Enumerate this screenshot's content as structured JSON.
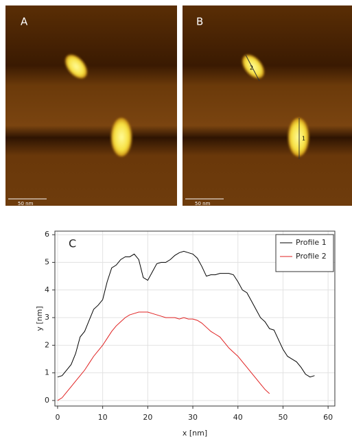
{
  "panels": [
    {
      "label": "A",
      "scale_bar": "50 nm"
    },
    {
      "label": "B",
      "scale_bar": "50 nm",
      "profile_labels": [
        "2",
        "1"
      ]
    }
  ],
  "chart_data": {
    "type": "line",
    "panel_label": "C",
    "x_label": "x [nm]",
    "y_label": "y [nm]",
    "xlim": [
      -0.6,
      61.5
    ],
    "ylim": [
      -0.2,
      6.13
    ],
    "xticks": [
      0,
      10,
      20,
      30,
      40,
      50,
      60
    ],
    "yticks": [
      0,
      1,
      2,
      3,
      4,
      5,
      6
    ],
    "grid": true,
    "legend": "upper right",
    "series": [
      {
        "name": "Profile 1",
        "color": "#000000",
        "x": [
          0,
          1,
          2,
          3,
          4,
          5,
          6,
          7,
          8,
          9,
          10,
          11,
          12,
          13,
          14,
          15,
          16,
          17,
          18,
          19,
          20,
          21,
          22,
          23,
          24,
          25,
          26,
          27,
          28,
          29,
          30,
          31,
          32,
          33,
          34,
          35,
          36,
          37,
          38,
          39,
          40,
          41,
          42,
          43,
          44,
          45,
          46,
          47,
          48,
          49,
          50,
          51,
          52,
          53,
          54,
          55,
          56,
          57
        ],
        "values": [
          0.85,
          0.9,
          1.1,
          1.3,
          1.7,
          2.3,
          2.5,
          2.9,
          3.3,
          3.45,
          3.65,
          4.3,
          4.8,
          4.9,
          5.1,
          5.2,
          5.2,
          5.3,
          5.1,
          4.45,
          4.35,
          4.65,
          4.95,
          5.0,
          5.0,
          5.1,
          5.25,
          5.35,
          5.4,
          5.35,
          5.3,
          5.15,
          4.85,
          4.5,
          4.55,
          4.55,
          4.6,
          4.6,
          4.6,
          4.55,
          4.3,
          4.0,
          3.9,
          3.6,
          3.3,
          3.0,
          2.85,
          2.6,
          2.55,
          2.2,
          1.85,
          1.6,
          1.5,
          1.4,
          1.2,
          0.95,
          0.85,
          0.9
        ]
      },
      {
        "name": "Profile 2",
        "color": "#e02020",
        "x": [
          0,
          1,
          2,
          3,
          4,
          5,
          6,
          7,
          8,
          9,
          10,
          11,
          12,
          13,
          14,
          15,
          16,
          17,
          18,
          19,
          20,
          21,
          22,
          23,
          24,
          25,
          26,
          27,
          28,
          29,
          30,
          31,
          32,
          33,
          34,
          35,
          36,
          37,
          38,
          39,
          40,
          41,
          42,
          43,
          44,
          45,
          46,
          47
        ],
        "values": [
          0,
          0.1,
          0.3,
          0.5,
          0.7,
          0.9,
          1.1,
          1.35,
          1.6,
          1.8,
          2.0,
          2.25,
          2.5,
          2.7,
          2.85,
          3.0,
          3.1,
          3.15,
          3.2,
          3.2,
          3.2,
          3.15,
          3.1,
          3.05,
          3.0,
          3.0,
          3.0,
          2.95,
          3.0,
          2.95,
          2.95,
          2.9,
          2.8,
          2.65,
          2.5,
          2.4,
          2.3,
          2.1,
          1.9,
          1.75,
          1.6,
          1.4,
          1.2,
          1.0,
          0.8,
          0.6,
          0.4,
          0.25
        ]
      }
    ]
  }
}
